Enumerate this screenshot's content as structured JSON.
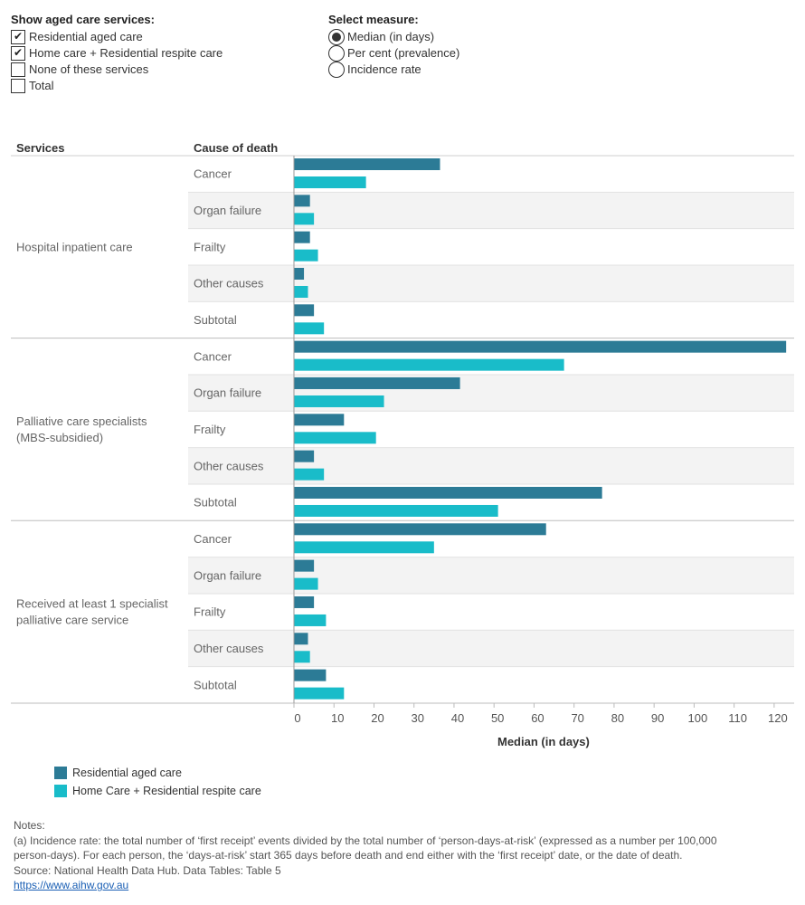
{
  "controls": {
    "services_title": "Show aged care services:",
    "services": [
      {
        "label": "Residential aged care",
        "checked": true
      },
      {
        "label": "Home care + Residential respite care",
        "checked": true
      },
      {
        "label": "None of these services",
        "checked": false
      },
      {
        "label": "Total",
        "checked": false
      }
    ],
    "measure_title": "Select measure:",
    "measures": [
      {
        "label": "Median (in days)",
        "selected": true
      },
      {
        "label": "Per cent (prevalence)",
        "selected": false
      },
      {
        "label": "Incidence rate",
        "selected": false
      }
    ]
  },
  "colors": {
    "residential": "#2c7b96",
    "home_care": "#19bcc9",
    "band": "#f3f3f3"
  },
  "chart_data": {
    "type": "bar",
    "orientation": "horizontal",
    "column_headers": {
      "services": "Services",
      "cause": "Cause of death"
    },
    "xlabel": "Median (in days)",
    "xlim": [
      0,
      125
    ],
    "xticks": [
      0,
      10,
      20,
      30,
      40,
      50,
      60,
      70,
      80,
      90,
      100,
      110,
      120
    ],
    "series_names": [
      "Residential aged care",
      "Home Care + Residential respite care"
    ],
    "groups": [
      {
        "service_lines": [
          "Hospital inpatient care"
        ],
        "rows": [
          {
            "cause": "Cancer",
            "values": [
              36.5,
              18
            ]
          },
          {
            "cause": "Organ failure",
            "values": [
              4,
              5
            ]
          },
          {
            "cause": "Frailty",
            "values": [
              4,
              6
            ]
          },
          {
            "cause": "Other causes",
            "values": [
              2.5,
              3.5
            ]
          },
          {
            "cause": "Subtotal",
            "values": [
              5,
              7.5
            ]
          }
        ]
      },
      {
        "service_lines": [
          "Palliative care specialists",
          "(MBS-subsidied)"
        ],
        "rows": [
          {
            "cause": "Cancer",
            "values": [
              123,
              67.5
            ]
          },
          {
            "cause": "Organ failure",
            "values": [
              41.5,
              22.5
            ]
          },
          {
            "cause": "Frailty",
            "values": [
              12.5,
              20.5
            ]
          },
          {
            "cause": "Other causes",
            "values": [
              5,
              7.5
            ]
          },
          {
            "cause": "Subtotal",
            "values": [
              77,
              51
            ]
          }
        ]
      },
      {
        "service_lines": [
          "Received at least 1 specialist",
          "palliative care service"
        ],
        "rows": [
          {
            "cause": "Cancer",
            "values": [
              63,
              35
            ]
          },
          {
            "cause": "Organ failure",
            "values": [
              5,
              6
            ]
          },
          {
            "cause": "Frailty",
            "values": [
              5,
              8
            ]
          },
          {
            "cause": "Other causes",
            "values": [
              3.5,
              4
            ]
          },
          {
            "cause": "Subtotal",
            "values": [
              8,
              12.5
            ]
          }
        ]
      }
    ]
  },
  "legend": [
    {
      "label": "Residential aged care"
    },
    {
      "label": "Home Care + Residential respite care"
    }
  ],
  "notes": {
    "heading": "Notes:",
    "lines": [
      "(a) Incidence rate: the total number of ‘first receipt’ events divided by the total number of ‘person-days-at-risk’ (expressed as a number per 100,000",
      "person-days). For each person, the ‘days-at-risk’ start 365 days before death and end either with the ‘first receipt’ date, or the date of death.",
      "Source: National Health Data Hub. Data Tables: Table 5"
    ],
    "link": "https://www.aihw.gov.au"
  }
}
